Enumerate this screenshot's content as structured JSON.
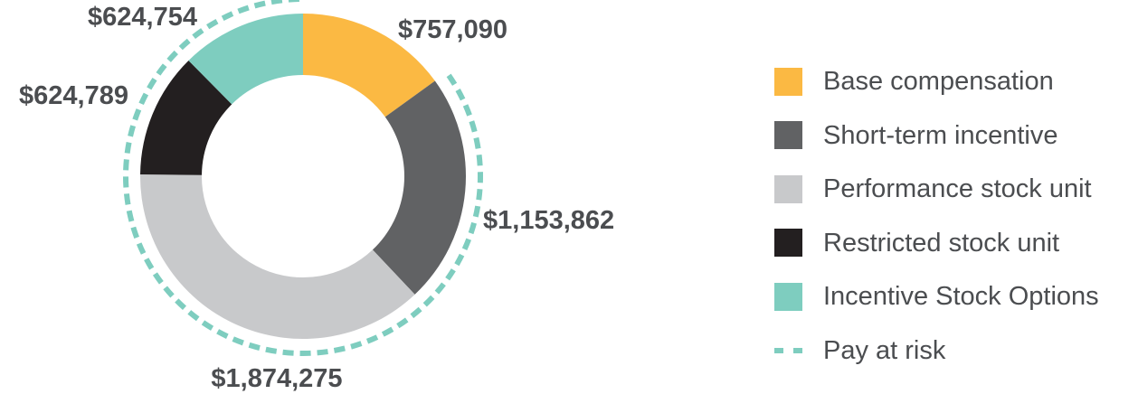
{
  "chart_data": {
    "type": "pie",
    "subtype": "donut",
    "series": [
      {
        "name": "Base compensation",
        "value": 757090,
        "label": "$757,090",
        "color": "#fbb943"
      },
      {
        "name": "Short-term incentive",
        "value": 1153862,
        "label": "$1,153,862",
        "color": "#616264"
      },
      {
        "name": "Performance stock unit",
        "value": 1874275,
        "label": "$1,874,275",
        "color": "#c8c9cb"
      },
      {
        "name": "Restricted stock unit",
        "value": 624789,
        "label": "$624,789",
        "color": "#231f20"
      },
      {
        "name": "Incentive Stock Options",
        "value": 624754,
        "label": "$624,754",
        "color": "#7ecdbf"
      }
    ],
    "pay_at_risk": {
      "label": "Pay at risk",
      "color": "#7ecdbf",
      "segments": [
        "Short-term incentive",
        "Performance stock unit",
        "Restricted stock unit",
        "Incentive Stock Options"
      ]
    },
    "legend_position": "right",
    "title": "",
    "grid": false
  }
}
